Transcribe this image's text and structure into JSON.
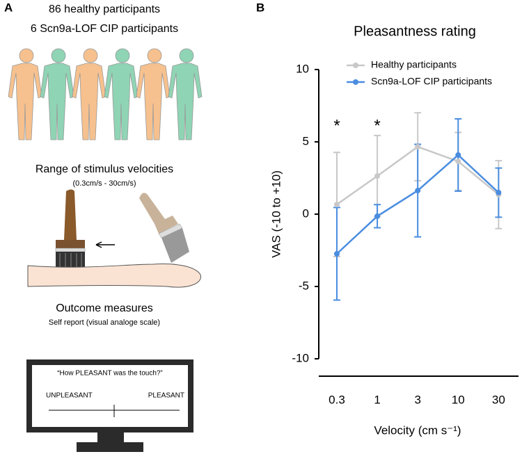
{
  "panel_a": {
    "letter": "A",
    "participants_healthy": "86 healthy participants",
    "participants_cip": "6 Scn9a-LOF CIP participants",
    "stimulus_title": "Range of stimulus velocities",
    "stimulus_range": "(0.3cm/s - 30cm/s)",
    "outcome_title": "Outcome measures",
    "outcome_subtitle": "Self report (visual analoge scale)",
    "screen_question": "“How PLEASANT was the touch?”",
    "screen_left": "UNPLEASANT",
    "screen_right": "PLEASANT"
  },
  "chart_data": {
    "type": "line",
    "letter": "B",
    "title": "Pleasantness rating",
    "y_label": "VAS (-10 to +10)",
    "x_label": "Velocity (cm s⁻¹)",
    "categories": [
      "0.3",
      "1",
      "3",
      "10",
      "30"
    ],
    "series": [
      {
        "name": "Healthy participants",
        "color": "#c8c8c8",
        "values": [
          0.67,
          2.64,
          4.66,
          3.65,
          1.35
        ],
        "errors": [
          3.6,
          2.8,
          2.35,
          2.0,
          2.35
        ]
      },
      {
        "name": "Scn9a-LOF CIP participants",
        "color": "#4a8de0",
        "values": [
          -2.74,
          -0.14,
          1.63,
          4.09,
          1.49
        ],
        "errors": [
          3.2,
          0.8,
          3.2,
          2.5,
          1.7
        ]
      }
    ],
    "annotations": [
      "*",
      "*"
    ],
    "ylim": [
      -10,
      10
    ],
    "yticks": [
      -10,
      -5,
      0,
      5,
      10
    ],
    "legend": "top-left"
  }
}
